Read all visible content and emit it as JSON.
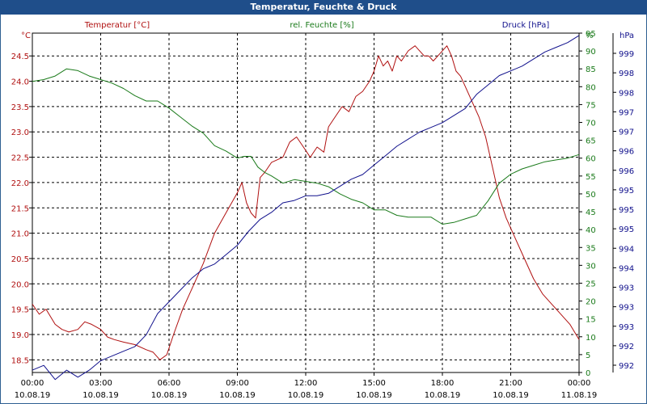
{
  "window": {
    "title": "Temperatur, Feuchte & Druck"
  },
  "chart_data": {
    "type": "line",
    "title": "Temperatur, Feuchte & Druck",
    "x_ticks": [
      {
        "time": "00:00",
        "date": "10.08.19"
      },
      {
        "time": "03:00",
        "date": "10.08.19"
      },
      {
        "time": "06:00",
        "date": "10.08.19"
      },
      {
        "time": "09:00",
        "date": "10.08.19"
      },
      {
        "time": "12:00",
        "date": "10.08.19"
      },
      {
        "time": "15:00",
        "date": "10.08.19"
      },
      {
        "time": "18:00",
        "date": "10.08.19"
      },
      {
        "time": "21:00",
        "date": "10.08.19"
      },
      {
        "time": "00:00",
        "date": "11.08.19"
      }
    ],
    "xlim_hours": [
      0,
      24
    ],
    "axes": {
      "temperature": {
        "label": "Temperatur [°C]",
        "unit": "°C",
        "color": "#b01010",
        "ylim": [
          18.25,
          24.95
        ],
        "ticks": [
          "18.5",
          "19.0",
          "19.5",
          "20.0",
          "20.5",
          "21.0",
          "21.5",
          "22.0",
          "22.5",
          "23.0",
          "23.5",
          "24.0",
          "24.5"
        ]
      },
      "humidity": {
        "label": "rel. Feuchte [%]",
        "unit": "%",
        "color": "#1a7a1a",
        "ylim": [
          0,
          95
        ],
        "ticks": [
          "0",
          "5",
          "10",
          "15",
          "20",
          "25",
          "30",
          "35",
          "40",
          "45",
          "50",
          "55",
          "60",
          "65",
          "70",
          "75",
          "80",
          "85",
          "90",
          "95"
        ]
      },
      "pressure": {
        "label": "Druck [hPa]",
        "unit": "hPa",
        "color": "#10108c",
        "tick_labels": [
          "992",
          "992",
          "993",
          "993",
          "993",
          "994",
          "994",
          "995",
          "995",
          "995",
          "996",
          "996",
          "997",
          "997",
          "998",
          "998",
          "999"
        ]
      }
    },
    "series": [
      {
        "name": "Temperatur",
        "axis": "temperature",
        "color": "#b01010",
        "x": [
          0,
          0.3,
          0.6,
          1,
          1.3,
          1.6,
          2,
          2.3,
          2.6,
          3,
          3.3,
          3.6,
          4,
          4.5,
          5,
          5.3,
          5.6,
          5.9,
          6.2,
          6.6,
          7,
          7.5,
          8,
          8.5,
          9,
          9.2,
          9.4,
          9.6,
          9.8,
          10,
          10.2,
          10.5,
          11,
          11.3,
          11.6,
          11.9,
          12.2,
          12.5,
          12.8,
          13,
          13.3,
          13.6,
          13.9,
          14.2,
          14.5,
          14.8,
          15,
          15.2,
          15.4,
          15.6,
          15.8,
          16,
          16.2,
          16.5,
          16.8,
          17,
          17.2,
          17.4,
          17.6,
          17.8,
          18,
          18.2,
          18.4,
          18.6,
          18.8,
          19,
          19.3,
          19.6,
          19.9,
          20.2,
          20.5,
          20.8,
          21.2,
          21.6,
          22,
          22.4,
          22.8,
          23.2,
          23.6,
          24
        ],
        "y": [
          19.6,
          19.4,
          19.5,
          19.2,
          19.1,
          19.05,
          19.1,
          19.25,
          19.2,
          19.1,
          18.95,
          18.9,
          18.85,
          18.8,
          18.7,
          18.65,
          18.5,
          18.6,
          19.0,
          19.5,
          19.9,
          20.4,
          21.0,
          21.4,
          21.8,
          22.0,
          21.6,
          21.4,
          21.3,
          22.1,
          22.2,
          22.4,
          22.5,
          22.8,
          22.9,
          22.7,
          22.5,
          22.7,
          22.6,
          23.1,
          23.3,
          23.5,
          23.4,
          23.7,
          23.8,
          24.0,
          24.2,
          24.5,
          24.3,
          24.4,
          24.2,
          24.5,
          24.4,
          24.6,
          24.7,
          24.6,
          24.5,
          24.5,
          24.4,
          24.5,
          24.6,
          24.7,
          24.5,
          24.2,
          24.1,
          23.9,
          23.6,
          23.3,
          22.9,
          22.3,
          21.7,
          21.3,
          20.9,
          20.5,
          20.1,
          19.8,
          19.6,
          19.4,
          19.2,
          18.9
        ]
      },
      {
        "name": "rel. Feuchte",
        "axis": "humidity",
        "color": "#1a7a1a",
        "x": [
          0,
          0.5,
          1,
          1.5,
          2,
          2.5,
          3,
          3.5,
          4,
          4.5,
          5,
          5.5,
          6,
          6.5,
          7,
          7.5,
          8,
          8.5,
          9,
          9.3,
          9.6,
          9.9,
          10.2,
          10.5,
          11,
          11.5,
          12,
          12.5,
          13,
          13.5,
          14,
          14.5,
          15,
          15.5,
          16,
          16.5,
          17,
          17.5,
          18,
          18.5,
          19,
          19.5,
          20,
          20.5,
          21,
          21.5,
          22,
          22.5,
          23,
          23.5,
          24
        ],
        "y": [
          81.5,
          82,
          83,
          85,
          84.5,
          83,
          82,
          81,
          79.5,
          77.5,
          76,
          76,
          74,
          71.5,
          69,
          67,
          63.5,
          62,
          60,
          60.5,
          60.5,
          57.5,
          56,
          55,
          53,
          54,
          53.5,
          53,
          52,
          50,
          48.5,
          47.5,
          45.5,
          45.5,
          44,
          43.5,
          43.5,
          43.5,
          41.5,
          42,
          43,
          44,
          48,
          53,
          55.5,
          57,
          58,
          59,
          59.5,
          60,
          61
        ]
      },
      {
        "name": "Druck",
        "axis": "pressure",
        "color": "#10108c",
        "x": [
          0,
          0.5,
          1,
          1.5,
          2,
          2.5,
          3,
          3.5,
          4,
          4.5,
          5,
          5.5,
          6,
          6.5,
          7,
          7.5,
          8,
          8.5,
          9,
          9.5,
          10,
          10.5,
          11,
          11.5,
          12,
          12.5,
          13,
          13.5,
          14,
          14.5,
          15,
          15.5,
          16,
          16.5,
          17,
          17.5,
          18,
          18.5,
          19,
          19.5,
          20,
          20.5,
          21,
          21.5,
          22,
          22.5,
          23,
          23.5,
          24
        ],
        "y": [
          991.85,
          991.95,
          991.65,
          991.85,
          991.7,
          991.85,
          992.05,
          992.15,
          992.25,
          992.35,
          992.6,
          993.05,
          993.3,
          993.55,
          993.8,
          994.0,
          994.1,
          994.3,
          994.5,
          994.8,
          995.05,
          995.2,
          995.4,
          995.45,
          995.55,
          995.55,
          995.6,
          995.75,
          995.9,
          996.0,
          996.2,
          996.4,
          996.6,
          996.75,
          996.9,
          997.0,
          997.1,
          997.25,
          997.4,
          997.7,
          997.9,
          998.1,
          998.2,
          998.3,
          998.45,
          998.6,
          998.7,
          998.8,
          998.95
        ]
      }
    ]
  }
}
